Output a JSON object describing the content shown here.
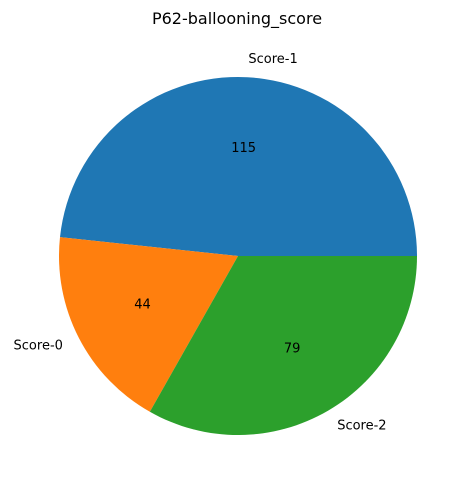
{
  "chart_data": {
    "type": "pie",
    "title": "P62-ballooning_score",
    "labels": [
      "Score-1",
      "Score-0",
      "Score-2"
    ],
    "values": [
      115,
      44,
      79
    ],
    "value_labels": [
      "115",
      "44",
      "79"
    ],
    "colors": [
      "#1f77b4",
      "#ff7f0e",
      "#2ca02c"
    ],
    "start_angle_deg": 0,
    "direction": "counterclockwise",
    "legend": "none"
  }
}
